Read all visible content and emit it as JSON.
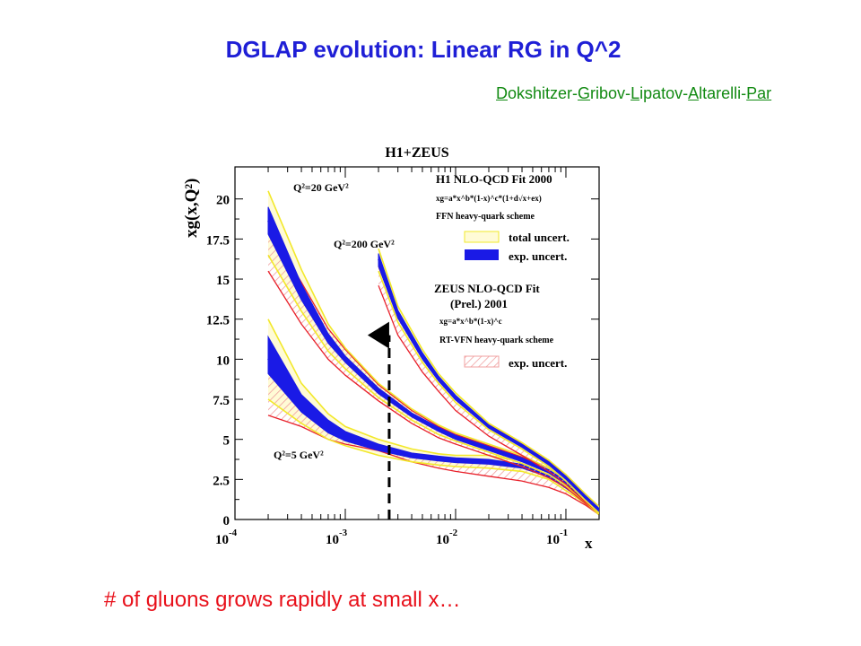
{
  "slide": {
    "title": "DGLAP evolution: Linear RG in Q^2",
    "subtitle_parts": [
      {
        "u": "D",
        "t": "okshitzer-"
      },
      {
        "u": "G",
        "t": "ribov-"
      },
      {
        "u": "L",
        "t": "ipatov-"
      },
      {
        "u": "A",
        "t": "ltarelli-"
      },
      {
        "u": "Par",
        "t": ""
      }
    ],
    "footer": "# of gluons grows rapidly at small x…"
  },
  "chart_data": {
    "type": "line",
    "title": "H1+ZEUS",
    "xlabel": "x",
    "ylabel": "xg(x,Q²)",
    "x_scale": "log",
    "xlim": [
      0.0001,
      0.2
    ],
    "ylim": [
      0,
      22
    ],
    "x_ticks": [
      {
        "value": 0.0001,
        "base": "10",
        "exp": "-4"
      },
      {
        "value": 0.001,
        "base": "10",
        "exp": "-3"
      },
      {
        "value": 0.01,
        "base": "10",
        "exp": "-2"
      },
      {
        "value": 0.1,
        "base": "10",
        "exp": "-1"
      }
    ],
    "y_ticks": [
      "0",
      "2.5",
      "5",
      "7.5",
      "10",
      "12.5",
      "15",
      "17.5",
      "20"
    ],
    "y_tick_values": [
      0,
      2.5,
      5,
      7.5,
      10,
      12.5,
      15,
      17.5,
      20
    ],
    "series": [
      {
        "label": "Q²=5 GeV²",
        "x": [
          0.0002,
          0.0004,
          0.0007,
          0.001,
          0.002,
          0.004,
          0.007,
          0.01,
          0.02,
          0.04,
          0.07,
          0.1,
          0.15,
          0.2
        ],
        "h1_center": [
          10.0,
          7.2,
          5.8,
          5.2,
          4.5,
          4.0,
          3.8,
          3.7,
          3.6,
          3.3,
          2.8,
          2.1,
          1.2,
          0.5
        ],
        "h1_total_band": [
          [
            7.5,
            12.5
          ],
          [
            6.0,
            8.5
          ],
          [
            5.0,
            6.6
          ],
          [
            4.6,
            5.8
          ],
          [
            4.0,
            5.0
          ],
          [
            3.6,
            4.4
          ],
          [
            3.4,
            4.1
          ],
          [
            3.3,
            4.0
          ],
          [
            3.2,
            4.0
          ],
          [
            3.0,
            3.6
          ],
          [
            2.5,
            3.1
          ],
          [
            1.8,
            2.4
          ],
          [
            1.0,
            1.5
          ],
          [
            0.3,
            0.7
          ]
        ],
        "h1_exp_band": [
          [
            9.1,
            11.4
          ],
          [
            6.7,
            7.8
          ],
          [
            5.4,
            6.2
          ],
          [
            4.9,
            5.5
          ],
          [
            4.3,
            4.7
          ],
          [
            3.85,
            4.15
          ],
          [
            3.65,
            3.95
          ],
          [
            3.55,
            3.85
          ],
          [
            3.45,
            3.75
          ],
          [
            3.2,
            3.45
          ],
          [
            2.65,
            2.95
          ],
          [
            1.95,
            2.25
          ],
          [
            1.1,
            1.3
          ],
          [
            0.4,
            0.6
          ]
        ],
        "zeus_band": [
          [
            6.5,
            9.2
          ],
          [
            5.8,
            7.0
          ],
          [
            5.0,
            5.9
          ],
          [
            4.7,
            5.2
          ],
          [
            4.3,
            4.6
          ],
          [
            3.6,
            4.1
          ],
          [
            3.2,
            3.8
          ],
          [
            3.0,
            3.7
          ],
          [
            2.7,
            3.5
          ],
          [
            2.4,
            3.4
          ],
          [
            2.0,
            2.9
          ],
          [
            1.6,
            2.3
          ],
          [
            0.9,
            1.4
          ],
          [
            0.3,
            0.6
          ]
        ]
      },
      {
        "label": "Q²=20 GeV²",
        "x": [
          0.0002,
          0.0004,
          0.0007,
          0.001,
          0.002,
          0.004,
          0.007,
          0.01,
          0.02,
          0.04,
          0.07,
          0.1,
          0.15,
          0.2
        ],
        "h1_center": [
          18.6,
          14.2,
          11.3,
          10.0,
          8.0,
          6.5,
          5.6,
          5.1,
          4.4,
          3.7,
          3.0,
          2.3,
          1.3,
          0.5
        ],
        "h1_total_band": [
          [
            16.5,
            20.5
          ],
          [
            13.0,
            15.6
          ],
          [
            10.5,
            12.2
          ],
          [
            9.4,
            10.7
          ],
          [
            7.6,
            8.5
          ],
          [
            6.2,
            6.9
          ],
          [
            5.3,
            5.9
          ],
          [
            4.9,
            5.4
          ],
          [
            4.2,
            4.7
          ],
          [
            3.5,
            4.0
          ],
          [
            2.8,
            3.2
          ],
          [
            2.1,
            2.5
          ],
          [
            1.1,
            1.5
          ],
          [
            0.3,
            0.7
          ]
        ],
        "h1_exp_band": [
          [
            17.8,
            19.5
          ],
          [
            13.7,
            14.7
          ],
          [
            11.0,
            11.6
          ],
          [
            9.8,
            10.2
          ],
          [
            7.85,
            8.2
          ],
          [
            6.4,
            6.65
          ],
          [
            5.5,
            5.75
          ],
          [
            5.0,
            5.25
          ],
          [
            4.3,
            4.55
          ],
          [
            3.6,
            3.85
          ],
          [
            2.9,
            3.1
          ],
          [
            2.2,
            2.4
          ],
          [
            1.2,
            1.4
          ],
          [
            0.4,
            0.6
          ]
        ],
        "zeus_band": [
          [
            15.5,
            18.2
          ],
          [
            12.2,
            14.8
          ],
          [
            10.0,
            11.9
          ],
          [
            9.0,
            10.6
          ],
          [
            7.4,
            8.4
          ],
          [
            6.0,
            6.8
          ],
          [
            5.1,
            5.8
          ],
          [
            4.7,
            5.3
          ],
          [
            4.0,
            4.6
          ],
          [
            3.3,
            3.9
          ],
          [
            2.6,
            3.2
          ],
          [
            2.0,
            2.5
          ],
          [
            1.0,
            1.5
          ],
          [
            0.3,
            0.7
          ]
        ]
      },
      {
        "label": "Q²=200 GeV²",
        "x": [
          0.002,
          0.003,
          0.005,
          0.007,
          0.01,
          0.02,
          0.04,
          0.07,
          0.1,
          0.15,
          0.2
        ],
        "h1_center": [
          16.2,
          12.8,
          10.2,
          8.8,
          7.6,
          5.8,
          4.6,
          3.5,
          2.6,
          1.4,
          0.6
        ],
        "h1_total_band": [
          [
            15.5,
            16.9
          ],
          [
            12.3,
            13.3
          ],
          [
            9.8,
            10.6
          ],
          [
            8.5,
            9.1
          ],
          [
            7.3,
            7.9
          ],
          [
            5.6,
            6.0
          ],
          [
            4.4,
            4.8
          ],
          [
            3.3,
            3.7
          ],
          [
            2.4,
            2.8
          ],
          [
            1.2,
            1.6
          ],
          [
            0.4,
            0.8
          ]
        ],
        "h1_exp_band": [
          [
            15.8,
            16.6
          ],
          [
            12.55,
            13.05
          ],
          [
            10.0,
            10.4
          ],
          [
            8.65,
            8.95
          ],
          [
            7.45,
            7.75
          ],
          [
            5.7,
            5.9
          ],
          [
            4.5,
            4.7
          ],
          [
            3.4,
            3.6
          ],
          [
            2.5,
            2.7
          ],
          [
            1.3,
            1.5
          ],
          [
            0.5,
            0.7
          ]
        ],
        "zeus_band": [
          [
            14.6,
            15.8
          ],
          [
            11.5,
            12.7
          ],
          [
            9.2,
            10.2
          ],
          [
            8.0,
            8.8
          ],
          [
            6.8,
            7.6
          ],
          [
            5.2,
            5.9
          ],
          [
            4.0,
            4.7
          ],
          [
            3.0,
            3.6
          ],
          [
            2.2,
            2.8
          ],
          [
            1.1,
            1.6
          ],
          [
            0.4,
            0.8
          ]
        ]
      }
    ],
    "legend": {
      "h1_title": "H1 NLO-QCD Fit 2000",
      "h1_formula": "xg=a*x^b*(1-x)^c*(1+d√x+ex)",
      "h1_scheme": "FFN heavy-quark scheme",
      "h1_total": "total uncert.",
      "h1_exp": "exp.  uncert.",
      "zeus_title": "ZEUS NLO-QCD Fit",
      "zeus_title2": "(Prel.) 2001",
      "zeus_formula": "xg=a*x^b*(1-x)^c",
      "zeus_scheme": "RT-VFN heavy-quark scheme",
      "zeus_exp": "exp.  uncert."
    },
    "arrow_x": 0.0025,
    "colors": {
      "h1_exp": "#1a1ae6",
      "h1_total_edge": "#f2e82a",
      "h1_total_fill": "#fffbd6",
      "zeus": "#e8202a",
      "zeus_hatch": "#f0a0a0",
      "title": "#1f1fd6",
      "subtitle": "#128a12",
      "footer": "#e8101a"
    }
  }
}
